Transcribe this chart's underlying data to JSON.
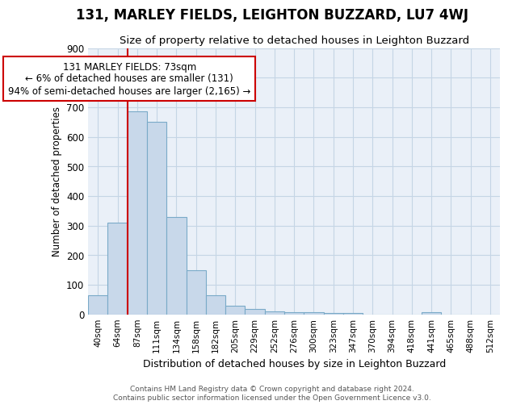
{
  "title": "131, MARLEY FIELDS, LEIGHTON BUZZARD, LU7 4WJ",
  "subtitle": "Size of property relative to detached houses in Leighton Buzzard",
  "xlabel": "Distribution of detached houses by size in Leighton Buzzard",
  "ylabel": "Number of detached properties",
  "categories": [
    "40sqm",
    "64sqm",
    "87sqm",
    "111sqm",
    "134sqm",
    "158sqm",
    "182sqm",
    "205sqm",
    "229sqm",
    "252sqm",
    "276sqm",
    "300sqm",
    "323sqm",
    "347sqm",
    "370sqm",
    "394sqm",
    "418sqm",
    "441sqm",
    "465sqm",
    "488sqm",
    "512sqm"
  ],
  "values": [
    65,
    310,
    685,
    650,
    328,
    150,
    65,
    30,
    18,
    10,
    8,
    6,
    5,
    5,
    0,
    0,
    0,
    8,
    0,
    0,
    0
  ],
  "bar_color": "#c8d8ea",
  "bar_edge_color": "#7aaac8",
  "grid_color": "#c5d5e5",
  "bg_color": "#eaf0f8",
  "annotation_text": "131 MARLEY FIELDS: 73sqm\n← 6% of detached houses are smaller (131)\n94% of semi-detached houses are larger (2,165) →",
  "annotation_box_color": "#ffffff",
  "annotation_box_edge": "#cc0000",
  "ylim": [
    0,
    900
  ],
  "yticks": [
    0,
    100,
    200,
    300,
    400,
    500,
    600,
    700,
    800,
    900
  ],
  "title_fontsize": 12,
  "subtitle_fontsize": 10,
  "footer1": "Contains HM Land Registry data © Crown copyright and database right 2024.",
  "footer2": "Contains public sector information licensed under the Open Government Licence v3.0."
}
